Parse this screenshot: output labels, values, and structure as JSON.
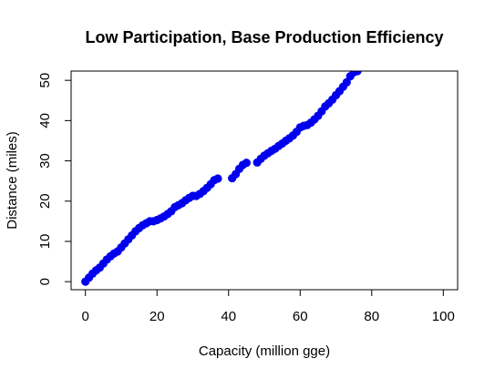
{
  "chart_data": {
    "type": "scatter",
    "title": "Low Participation, Base Production Efficiency",
    "x_label": "Capacity (million gge)",
    "y_label": "Distance (miles)",
    "color": "#0000ee",
    "xlim": [
      -4,
      104
    ],
    "ylim": [
      -2,
      52.3
    ],
    "xticks": [
      0,
      20,
      40,
      60,
      80,
      100
    ],
    "yticks": [
      0,
      10,
      20,
      30,
      40,
      50
    ],
    "x": [
      0,
      1,
      2,
      3,
      4,
      5,
      6,
      7,
      8,
      9,
      10,
      11,
      12,
      13,
      14,
      15,
      16,
      17,
      18,
      19,
      20,
      21,
      22,
      23,
      24,
      25,
      26,
      27,
      28,
      29,
      30,
      31,
      32,
      33,
      34,
      35,
      36,
      37,
      41,
      42,
      43,
      44,
      45,
      48,
      49,
      50,
      51,
      52,
      53,
      54,
      55,
      56,
      57,
      58,
      59,
      60,
      61,
      62,
      63,
      64,
      65,
      66,
      67,
      68,
      69,
      70,
      71,
      72,
      73,
      74,
      75,
      76
    ],
    "values": [
      0,
      1,
      2,
      2.8,
      3.5,
      4.5,
      5.5,
      6.3,
      7,
      7.5,
      8.5,
      9.5,
      10.5,
      11.5,
      12.5,
      13.3,
      14,
      14.5,
      15,
      15,
      15.3,
      15.7,
      16.2,
      16.8,
      17.5,
      18.5,
      19,
      19.5,
      20.2,
      20.8,
      21.3,
      21.3,
      21.8,
      22.5,
      23.3,
      24.2,
      25.2,
      25.6,
      25.7,
      26.7,
      28,
      29,
      29.5,
      29.6,
      30.5,
      31.3,
      31.9,
      32.5,
      33,
      33.7,
      34.3,
      35,
      35.6,
      36.3,
      37.2,
      38.3,
      38.7,
      38.9,
      39.5,
      40.3,
      41.2,
      42.3,
      43.5,
      44.3,
      45.2,
      46.3,
      47.3,
      48.4,
      49.5,
      51,
      52,
      52.3
    ]
  }
}
